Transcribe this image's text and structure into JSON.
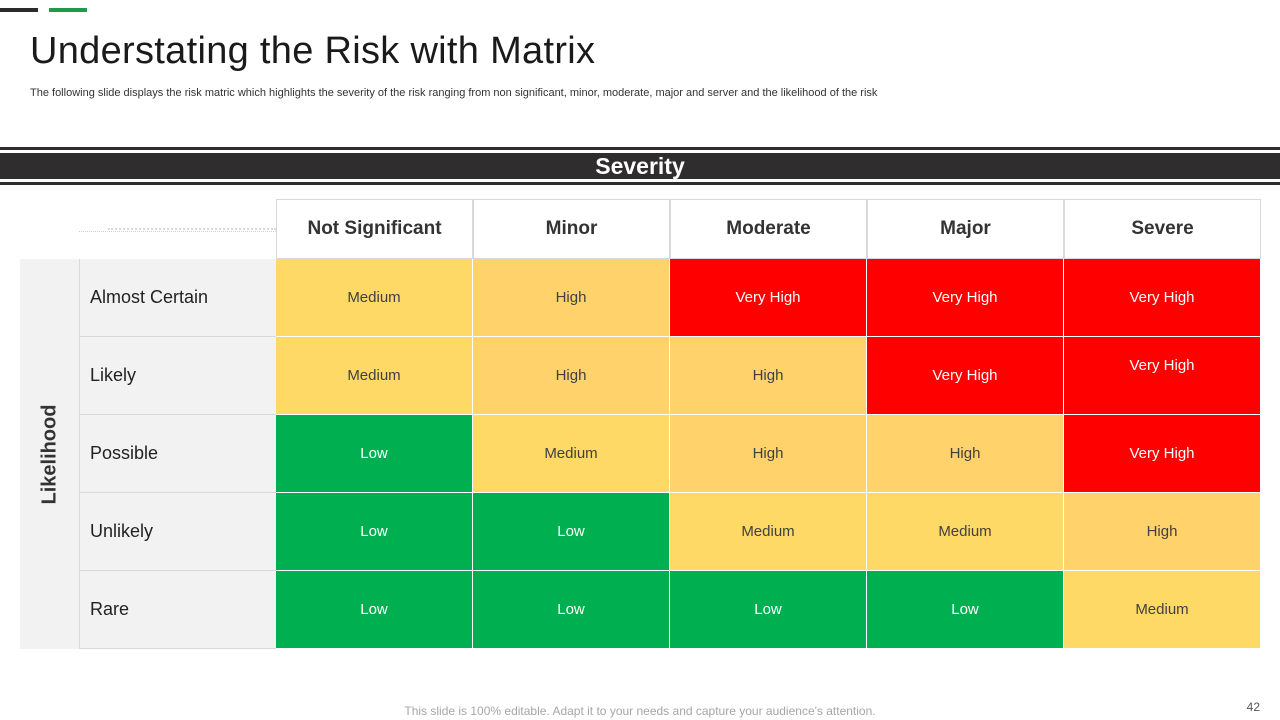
{
  "slide": {
    "title": "Understating the Risk with Matrix",
    "subtitle": "The following slide displays the risk matric which highlights the severity of the risk ranging from non significant, minor, moderate, major and server and the likelihood of the risk",
    "footer": "This slide is 100% editable. Adapt it to your needs and capture your audience's attention.",
    "page_number": "42"
  },
  "matrix": {
    "severity_label": "Severity",
    "likelihood_label": "Likelihood",
    "columns": [
      "Not Significant",
      "Minor",
      "Moderate",
      "Major",
      "Severe"
    ],
    "rows": [
      "Almost Certain",
      "Likely",
      "Possible",
      "Unlikely",
      "Rare"
    ],
    "cells": [
      [
        "Medium",
        "High",
        "Very High",
        "Very High",
        "Very High"
      ],
      [
        "Medium",
        "High",
        "High",
        "Very High",
        "Very High"
      ],
      [
        "Low",
        "Medium",
        "High",
        "High",
        "Very High"
      ],
      [
        "Low",
        "Low",
        "Medium",
        "Medium",
        "High"
      ],
      [
        "Low",
        "Low",
        "Low",
        "Low",
        "Medium"
      ]
    ],
    "level_colors": {
      "Low": "#00b050",
      "Medium": "#ffd966",
      "High": "#ffd26b",
      "Very High": "#ff0000"
    },
    "accent_colors": {
      "dark": "#2f2d2d",
      "green": "#1f9a4a"
    }
  }
}
